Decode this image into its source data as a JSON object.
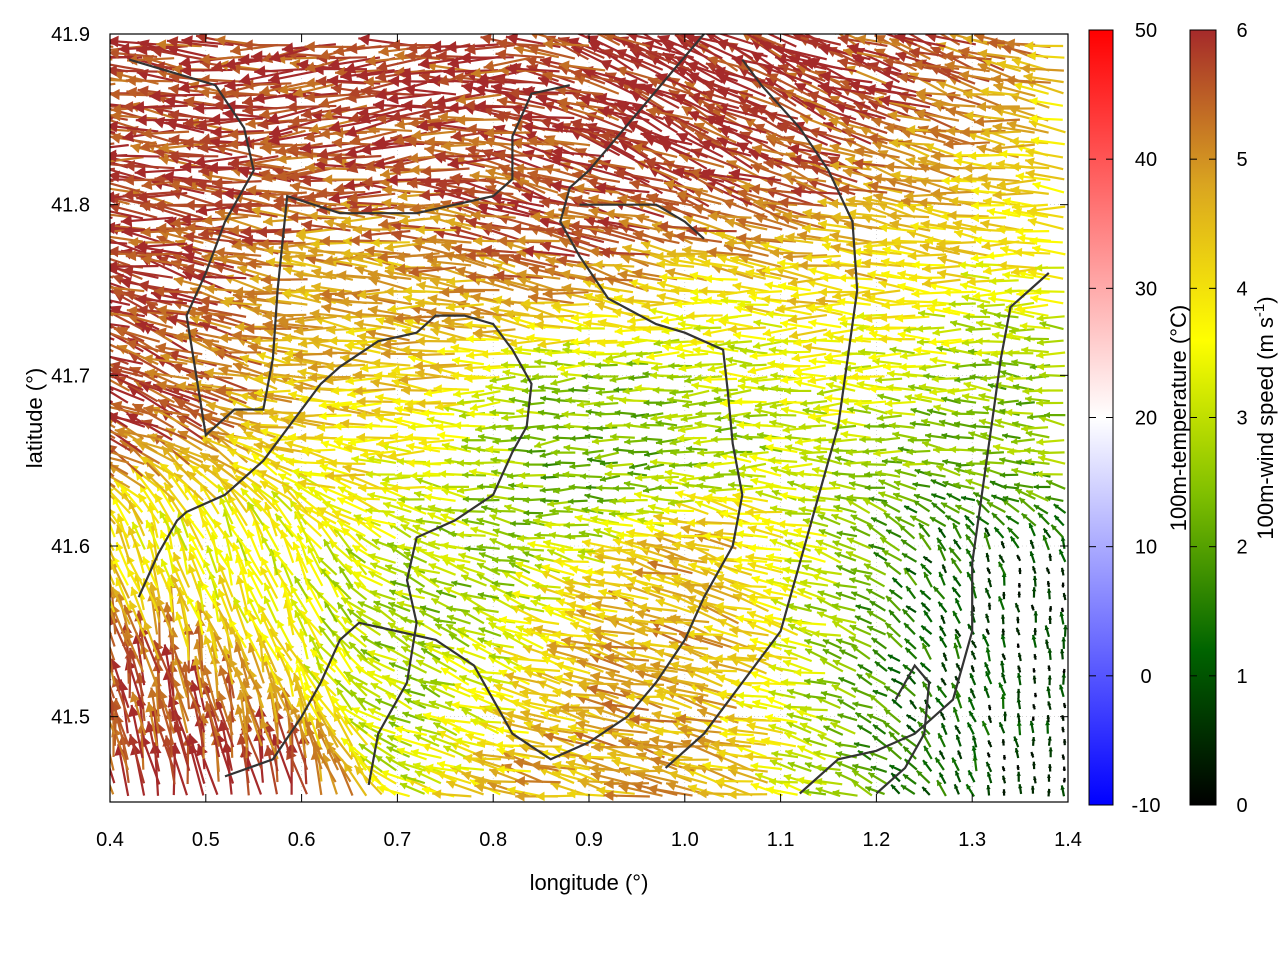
{
  "chart_data": {
    "type": "vector-field",
    "xlabel": "longitude (°)",
    "ylabel": "latitude (°)",
    "xlim": [
      0.4,
      1.4
    ],
    "ylim": [
      41.45,
      41.9
    ],
    "x_ticks": [
      "0.4",
      "0.5",
      "0.6",
      "0.7",
      "0.8",
      "0.9",
      "1.0",
      "1.1",
      "1.2",
      "1.3",
      "1.4"
    ],
    "y_ticks": [
      "41.5",
      "41.6",
      "41.7",
      "41.8",
      "41.9"
    ],
    "x_tick_values": [
      0.4,
      0.5,
      0.6,
      0.7,
      0.8,
      0.9,
      1.0,
      1.1,
      1.2,
      1.3,
      1.4
    ],
    "y_tick_values": [
      41.5,
      41.6,
      41.7,
      41.8,
      41.9
    ],
    "grid": true,
    "colorbars": [
      {
        "name": "100m-temperature (°C)",
        "label": "100m-temperature (°C)",
        "range": [
          -10,
          50
        ],
        "ticks": [
          "-10",
          "0",
          "10",
          "20",
          "30",
          "40",
          "50"
        ],
        "tick_values": [
          -10,
          0,
          10,
          20,
          30,
          40,
          50
        ],
        "colors": [
          "#0000ff",
          "#ffffff",
          "#ff0000"
        ]
      },
      {
        "name": "100m-wind speed",
        "label_main": "100m-wind speed (m s",
        "label_sup": "-1",
        "label_end": ")",
        "range": [
          0,
          6
        ],
        "ticks": [
          "0",
          "1",
          "2",
          "3",
          "4",
          "5",
          "6"
        ],
        "tick_values": [
          0,
          1,
          2,
          3,
          4,
          5,
          6
        ],
        "colors": [
          "#000000",
          "#006400",
          "#7fbf00",
          "#ffff00",
          "#daa520",
          "#a52a2a"
        ]
      }
    ],
    "wind_regions": [
      {
        "lon": 0.45,
        "lat": 41.7,
        "speed": 5.8,
        "dir": 160
      },
      {
        "lon": 0.45,
        "lat": 41.82,
        "speed": 5.8,
        "dir": 175
      },
      {
        "lon": 0.7,
        "lat": 41.86,
        "speed": 5.8,
        "dir": 185
      },
      {
        "lon": 0.92,
        "lat": 41.79,
        "speed": 5.8,
        "dir": 165
      },
      {
        "lon": 1.05,
        "lat": 41.84,
        "speed": 6.0,
        "dir": 155
      },
      {
        "lon": 1.2,
        "lat": 41.82,
        "speed": 5.7,
        "dir": 160
      },
      {
        "lon": 0.72,
        "lat": 41.74,
        "speed": 4.8,
        "dir": 175
      },
      {
        "lon": 1.12,
        "lat": 41.74,
        "speed": 4.4,
        "dir": 180
      },
      {
        "lon": 0.68,
        "lat": 41.67,
        "speed": 4.0,
        "dir": 178
      },
      {
        "lon": 0.9,
        "lat": 41.66,
        "speed": 2.0,
        "dir": 185
      },
      {
        "lon": 1.05,
        "lat": 41.7,
        "speed": 2.6,
        "dir": 180
      },
      {
        "lon": 0.42,
        "lat": 41.5,
        "speed": 5.8,
        "dir": 100
      },
      {
        "lon": 0.55,
        "lat": 41.58,
        "speed": 3.4,
        "dir": 110
      },
      {
        "lon": 0.78,
        "lat": 41.57,
        "speed": 2.5,
        "dir": 160
      },
      {
        "lon": 0.95,
        "lat": 41.53,
        "speed": 4.8,
        "dir": 170
      },
      {
        "lon": 1.05,
        "lat": 41.56,
        "speed": 5.2,
        "dir": 160
      },
      {
        "lon": 1.18,
        "lat": 41.55,
        "speed": 2.2,
        "dir": 180
      },
      {
        "lon": 1.3,
        "lat": 41.55,
        "speed": 0.4,
        "dir": 90
      },
      {
        "lon": 1.33,
        "lat": 41.68,
        "speed": 2.4,
        "dir": 175
      },
      {
        "lon": 1.3,
        "lat": 41.78,
        "speed": 3.6,
        "dir": 180
      }
    ],
    "contours": [
      [
        [
          0.42,
          41.885
        ],
        [
          0.51,
          41.87
        ],
        [
          0.54,
          41.845
        ],
        [
          0.55,
          41.82
        ],
        [
          0.52,
          41.79
        ],
        [
          0.5,
          41.76
        ],
        [
          0.48,
          41.735
        ],
        [
          0.49,
          41.7
        ],
        [
          0.5,
          41.665
        ],
        [
          0.53,
          41.68
        ],
        [
          0.56,
          41.68
        ],
        [
          0.57,
          41.71
        ],
        [
          0.575,
          41.75
        ],
        [
          0.585,
          41.805
        ],
        [
          0.64,
          41.795
        ],
        [
          0.72,
          41.795
        ],
        [
          0.76,
          41.8
        ],
        [
          0.8,
          41.805
        ],
        [
          0.82,
          41.815
        ],
        [
          0.82,
          41.84
        ],
        [
          0.84,
          41.865
        ],
        [
          0.88,
          41.87
        ]
      ],
      [
        [
          0.43,
          41.57
        ],
        [
          0.45,
          41.595
        ],
        [
          0.47,
          41.615
        ],
        [
          0.48,
          41.62
        ],
        [
          0.52,
          41.63
        ],
        [
          0.56,
          41.65
        ],
        [
          0.6,
          41.68
        ],
        [
          0.62,
          41.695
        ],
        [
          0.64,
          41.705
        ],
        [
          0.68,
          41.72
        ],
        [
          0.72,
          41.725
        ],
        [
          0.74,
          41.735
        ],
        [
          0.77,
          41.735
        ],
        [
          0.8,
          41.73
        ],
        [
          0.82,
          41.715
        ],
        [
          0.84,
          41.695
        ],
        [
          0.835,
          41.67
        ],
        [
          0.82,
          41.655
        ],
        [
          0.8,
          41.63
        ],
        [
          0.76,
          41.615
        ],
        [
          0.72,
          41.605
        ],
        [
          0.71,
          41.58
        ],
        [
          0.72,
          41.555
        ],
        [
          0.71,
          41.52
        ],
        [
          0.68,
          41.49
        ],
        [
          0.67,
          41.46
        ]
      ],
      [
        [
          0.52,
          41.465
        ],
        [
          0.57,
          41.475
        ],
        [
          0.6,
          41.5
        ],
        [
          0.62,
          41.52
        ],
        [
          0.64,
          41.545
        ],
        [
          0.66,
          41.555
        ],
        [
          0.7,
          41.55
        ],
        [
          0.74,
          41.545
        ],
        [
          0.78,
          41.53
        ],
        [
          0.8,
          41.51
        ],
        [
          0.82,
          41.49
        ],
        [
          0.86,
          41.475
        ],
        [
          0.9,
          41.485
        ],
        [
          0.94,
          41.5
        ],
        [
          0.97,
          41.52
        ],
        [
          1.0,
          41.545
        ],
        [
          1.02,
          41.57
        ],
        [
          1.05,
          41.6
        ],
        [
          1.06,
          41.63
        ],
        [
          1.05,
          41.66
        ],
        [
          1.045,
          41.69
        ],
        [
          1.04,
          41.715
        ],
        [
          1.0,
          41.725
        ],
        [
          0.97,
          41.73
        ],
        [
          0.92,
          41.745
        ],
        [
          0.89,
          41.77
        ],
        [
          0.87,
          41.79
        ],
        [
          0.88,
          41.81
        ],
        [
          0.9,
          41.82
        ],
        [
          0.93,
          41.84
        ],
        [
          0.96,
          41.86
        ],
        [
          0.99,
          41.88
        ],
        [
          1.02,
          41.9
        ]
      ],
      [
        [
          0.98,
          41.47
        ],
        [
          1.02,
          41.49
        ],
        [
          1.06,
          41.52
        ],
        [
          1.1,
          41.55
        ],
        [
          1.12,
          41.59
        ],
        [
          1.14,
          41.63
        ],
        [
          1.16,
          41.67
        ],
        [
          1.17,
          41.71
        ],
        [
          1.18,
          41.75
        ],
        [
          1.175,
          41.79
        ],
        [
          1.15,
          41.82
        ],
        [
          1.12,
          41.845
        ],
        [
          1.08,
          41.87
        ],
        [
          1.06,
          41.885
        ]
      ],
      [
        [
          1.12,
          41.455
        ],
        [
          1.16,
          41.475
        ],
        [
          1.2,
          41.48
        ],
        [
          1.24,
          41.49
        ],
        [
          1.26,
          41.5
        ],
        [
          1.28,
          41.51
        ],
        [
          1.3,
          41.55
        ],
        [
          1.3,
          41.59
        ],
        [
          1.31,
          41.63
        ],
        [
          1.32,
          41.67
        ],
        [
          1.33,
          41.71
        ],
        [
          1.34,
          41.74
        ],
        [
          1.36,
          41.75
        ],
        [
          1.38,
          41.76
        ]
      ],
      [
        [
          1.2,
          41.455
        ],
        [
          1.23,
          41.47
        ],
        [
          1.25,
          41.49
        ],
        [
          1.255,
          41.52
        ],
        [
          1.24,
          41.53
        ],
        [
          1.22,
          41.51
        ]
      ],
      [
        [
          0.89,
          41.8
        ],
        [
          0.93,
          41.8
        ],
        [
          0.97,
          41.8
        ],
        [
          1.0,
          41.79
        ],
        [
          1.02,
          41.78
        ]
      ]
    ]
  }
}
